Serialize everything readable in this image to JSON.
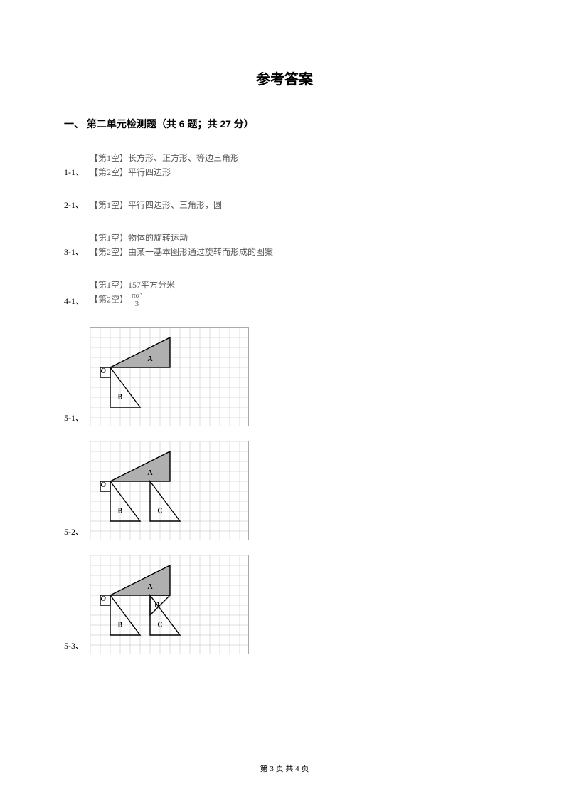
{
  "title": "参考答案",
  "section_header": "一、 第二单元检测题（共 6 题；共 27 分）",
  "answers": {
    "q1": {
      "num": "1-1、",
      "lines": [
        "【第1空】长方形、正方形、等边三角形",
        "【第2空】平行四边形"
      ]
    },
    "q2": {
      "num": "2-1、",
      "lines": [
        "【第1空】平行四边形、三角形，圆"
      ]
    },
    "q3": {
      "num": "3-1、",
      "lines": [
        "【第1空】物体的旋转运动",
        "【第2空】由某一基本图形通过旋转而形成的图案"
      ]
    },
    "q4": {
      "num": "4-1、",
      "line1": "【第1空】157平方分米",
      "line2_prefix": "【第2空】",
      "frac_num": "πα³",
      "frac_den": "3"
    }
  },
  "diagrams": {
    "common": {
      "grid_cols": 16,
      "grid_rows": 10,
      "cell": 14,
      "grid_color": "#d0d0d0",
      "stroke_color": "#000000",
      "fill_gray": "#b0b0b0",
      "label_O": "O",
      "label_A": "A",
      "label_B": "B",
      "label_C": "C",
      "label_D": "D"
    },
    "d1": {
      "num": "5-1、"
    },
    "d2": {
      "num": "5-2、"
    },
    "d3": {
      "num": "5-3、"
    }
  },
  "footer": "第 3 页 共 4 页"
}
